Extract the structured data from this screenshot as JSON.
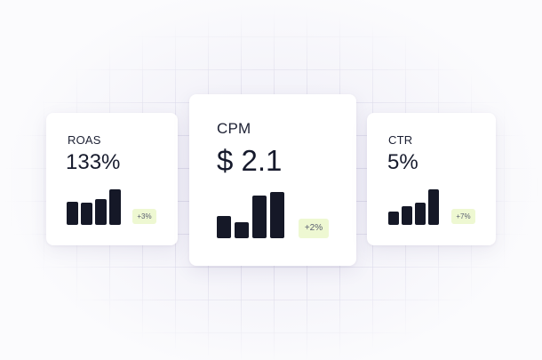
{
  "metrics": [
    {
      "label": "ROAS",
      "value": "133%",
      "change": "+3%",
      "bars": [
        0.63,
        0.6,
        0.7,
        0.95
      ]
    },
    {
      "label": "CPM",
      "value": "$ 2.1",
      "change": "+2%",
      "bars": [
        0.47,
        0.33,
        0.88,
        0.97
      ]
    },
    {
      "label": "CTR",
      "value": "5%",
      "change": "+7%",
      "bars": [
        0.37,
        0.52,
        0.62,
        0.97
      ]
    }
  ],
  "colors": {
    "bar": "#151827",
    "badge_bg": "#eef8d2",
    "card_bg": "#ffffff",
    "text": "#1c2033"
  }
}
